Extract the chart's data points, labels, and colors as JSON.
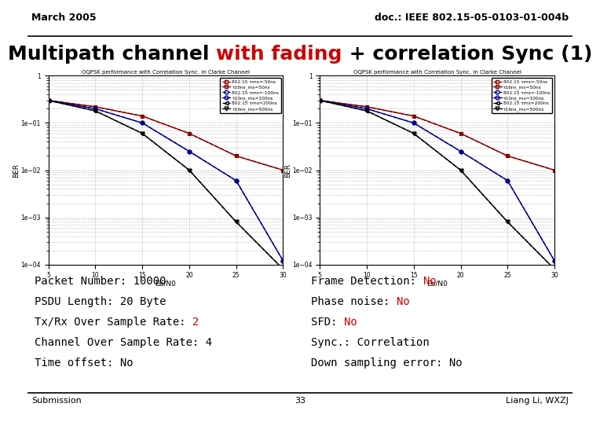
{
  "header_left": "March 2005",
  "header_right": "doc.: IEEE 802.15-05-0103-01-004b",
  "title_black1": "Multipath channel ",
  "title_red": "with fading",
  "title_black2": " + correlation Sync (1)",
  "chart_title": "OQPSK performance with Correlation Sync. in Clarke Channel",
  "xlabel": "Eb/N0",
  "ylabel": "BER",
  "footer_left": "Submission",
  "footer_center": "33",
  "footer_right": "Liang Li, WXZJ",
  "bg_color": "#ffffff",
  "red_color": "#cc0000",
  "legend_entries": [
    "802.15 τms=-50ns",
    "τ16ns_ms=50ns",
    "802.15 τms=-100ns",
    "τ10ns_ms=100ns",
    "802.15 τms=200ns",
    "τ16ns_ms=500ns"
  ],
  "legend_colors": [
    "#8b0000",
    "#8b0000",
    "#00008b",
    "#00008b",
    "#000000",
    "#000000"
  ],
  "legend_markers": [
    "s",
    "s",
    "o",
    "o",
    "<",
    "v"
  ],
  "legend_linestyles": [
    "--",
    "-",
    "--",
    "-",
    "--",
    "-"
  ],
  "series_Eb": [
    5,
    10,
    15,
    20,
    25,
    30
  ],
  "left_series": [
    [
      0.3,
      0.22,
      0.14,
      0.06,
      0.02,
      0.01
    ],
    [
      0.3,
      0.22,
      0.14,
      0.06,
      0.02,
      0.01
    ],
    [
      0.3,
      0.2,
      0.1,
      0.025,
      0.006,
      0.00012
    ],
    [
      0.3,
      0.2,
      0.1,
      0.025,
      0.006,
      0.00012
    ],
    [
      0.3,
      0.18,
      0.06,
      0.01,
      0.0008,
      8e-05
    ],
    [
      0.3,
      0.18,
      0.06,
      0.01,
      0.0008,
      8e-05
    ]
  ],
  "right_series": [
    [
      0.3,
      0.22,
      0.14,
      0.06,
      0.02,
      0.01
    ],
    [
      0.3,
      0.22,
      0.14,
      0.06,
      0.02,
      0.01
    ],
    [
      0.3,
      0.2,
      0.1,
      0.025,
      0.006,
      0.00012
    ],
    [
      0.3,
      0.2,
      0.1,
      0.025,
      0.006,
      0.00012
    ],
    [
      0.3,
      0.18,
      0.06,
      0.01,
      0.0008,
      8e-05
    ],
    [
      0.3,
      0.18,
      0.06,
      0.01,
      0.0008,
      8e-05
    ]
  ],
  "info_left_lines": [
    [
      "Packet Number: 10000",
      false,
      ""
    ],
    [
      "PSDU Length: 20 Byte",
      false,
      ""
    ],
    [
      "Tx/Rx Over Sample Rate: ",
      true,
      "2"
    ],
    [
      "Channel Over Sample Rate: 4",
      false,
      ""
    ],
    [
      "Time offset: No",
      false,
      ""
    ]
  ],
  "info_right_lines": [
    [
      "Frame Detection: ",
      true,
      "No"
    ],
    [
      "Phase noise: ",
      true,
      "No"
    ],
    [
      "SFD: ",
      true,
      "No"
    ],
    [
      "Sync.: Correlation",
      false,
      ""
    ],
    [
      "Down sampling error: No",
      false,
      ""
    ]
  ],
  "title_fontsize": 18,
  "info_fontsize": 10,
  "header_fontsize": 9,
  "footer_fontsize": 8
}
